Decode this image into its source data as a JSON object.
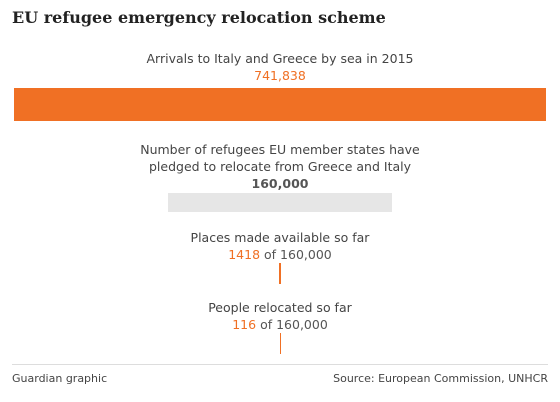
{
  "chart_data": {
    "type": "bar",
    "title": "EU refugee emergency relocation scheme",
    "categories": [
      "Arrivals to Italy and Greece by sea in 2015",
      "Number of refugees EU member states have pledged to relocate from Greece and Italy",
      "Places made available so far",
      "People relocated so far"
    ],
    "values": [
      741838,
      160000,
      1418,
      116
    ],
    "value_labels": [
      "741,838",
      "160,000",
      "1418",
      "116"
    ],
    "value_suffixes": [
      null,
      null,
      "of 160,000",
      "of 160,000"
    ],
    "colors": [
      "#f07024",
      "#e6e6e6",
      "#f07024",
      "#f07024"
    ],
    "value_label_colors": [
      "#f07024",
      "#555555",
      "#f07024",
      "#f07024"
    ],
    "credit": "Guardian graphic",
    "source": "Source: European Commission, UNHCR"
  }
}
